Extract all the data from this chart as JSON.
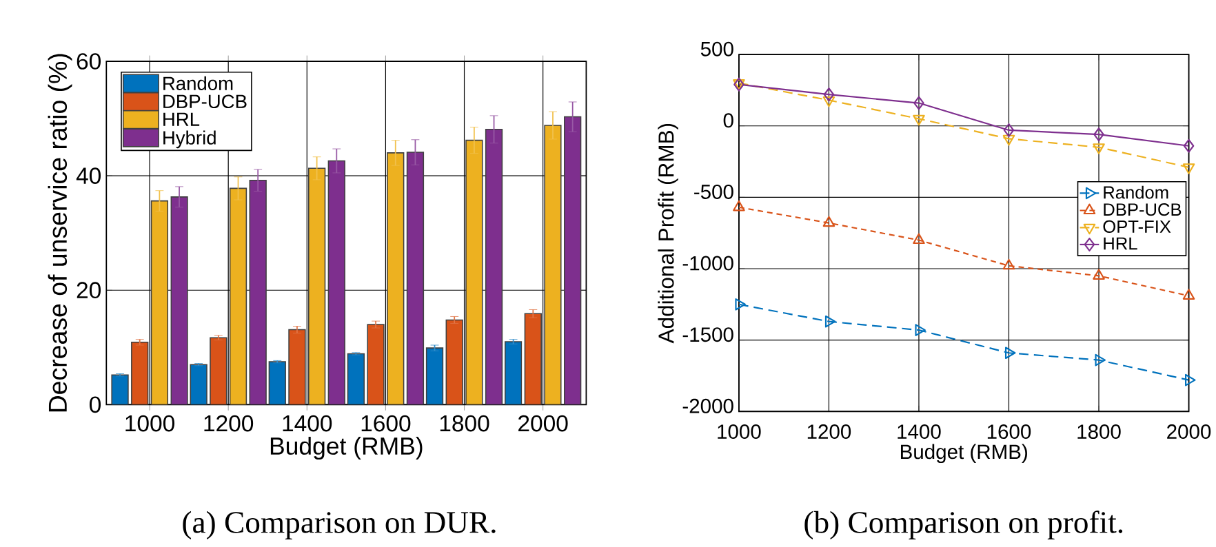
{
  "chart_data": [
    {
      "type": "bar",
      "categories": [
        "1000",
        "1200",
        "1400",
        "1600",
        "1800",
        "2000"
      ],
      "series": [
        {
          "name": "Random",
          "color": "#0072bd",
          "values": [
            5.2,
            7.0,
            7.5,
            8.9,
            9.9,
            11.0
          ],
          "errors": [
            0.2,
            0.2,
            0.2,
            0.2,
            0.5,
            0.4
          ]
        },
        {
          "name": "DBP-UCB",
          "color": "#d95319",
          "values": [
            10.9,
            11.7,
            13.1,
            14.0,
            14.8,
            15.9
          ],
          "errors": [
            0.5,
            0.4,
            0.6,
            0.6,
            0.6,
            0.7
          ]
        },
        {
          "name": "HRL",
          "color": "#edb120",
          "values": [
            35.6,
            37.8,
            41.3,
            44.0,
            46.2,
            48.8
          ],
          "errors": [
            1.8,
            2.0,
            2.0,
            2.2,
            2.3,
            2.4
          ]
        },
        {
          "name": "Hybrid",
          "color": "#7e2f8e",
          "values": [
            36.3,
            39.2,
            42.6,
            44.1,
            48.1,
            50.3
          ],
          "errors": [
            1.8,
            1.9,
            2.1,
            2.2,
            2.4,
            2.6
          ]
        }
      ],
      "ylim": [
        0,
        60
      ],
      "yticks": [
        0,
        20,
        40,
        60
      ],
      "xlabel": "Budget (RMB)",
      "ylabel": "Decrease of unservice ratio (%)",
      "grid": true,
      "legend": "top left",
      "annotations": [
        "(a)  Comparison on DUR."
      ]
    },
    {
      "type": "line",
      "categories": [
        "1000",
        "1200",
        "1400",
        "1600",
        "1800",
        "2000"
      ],
      "series": [
        {
          "name": "Random",
          "color": "#0072bd",
          "marker": "triangle-right",
          "line_style": "dashed",
          "values": [
            -1250,
            -1370,
            -1430,
            -1590,
            -1640,
            -1780
          ]
        },
        {
          "name": "DBP-UCB",
          "color": "#d95319",
          "marker": "triangle",
          "line_style": "dashed",
          "values": [
            -570,
            -680,
            -800,
            -980,
            -1050,
            -1190
          ]
        },
        {
          "name": "OPT-FIX",
          "color": "#edb120",
          "marker": "triangle-down",
          "line_style": "dashed",
          "values": [
            300,
            180,
            50,
            -90,
            -150,
            -290
          ]
        },
        {
          "name": "HRL",
          "color": "#7e2f8e",
          "marker": "diamond",
          "line_style": "solid",
          "values": [
            290,
            220,
            160,
            -30,
            -60,
            -140
          ]
        }
      ],
      "ylim": [
        -2000,
        500
      ],
      "yticks": [
        -2000,
        -1500,
        -1000,
        -500,
        0,
        500
      ],
      "xlabel": "Budget (RMB)",
      "ylabel": "Additional Profit (RMB)",
      "grid": true,
      "legend": "right",
      "annotations": [
        "(b) Comparison on profit."
      ]
    }
  ]
}
